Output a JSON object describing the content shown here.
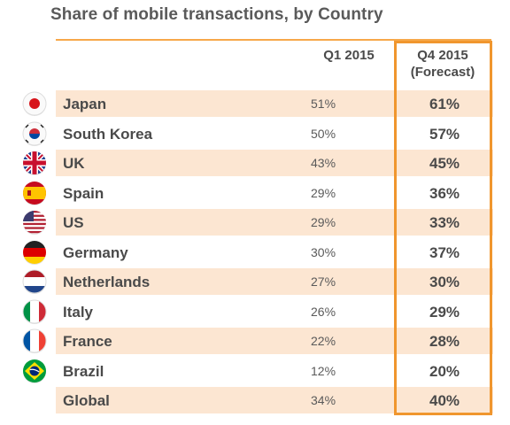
{
  "chart_data": {
    "type": "table",
    "title": "Share of mobile transactions, by Country",
    "columns": [
      "",
      "Q1 2015",
      "Q4 2015 (Forecast)"
    ],
    "header_q1": "Q1 2015",
    "header_q4_line1": "Q4 2015",
    "header_q4_line2": "(Forecast)",
    "rows": [
      {
        "country": "Japan",
        "q1": "51%",
        "q4": "61%",
        "flag": "japan-flag-icon"
      },
      {
        "country": "South Korea",
        "q1": "50%",
        "q4": "57%",
        "flag": "south-korea-flag-icon"
      },
      {
        "country": "UK",
        "q1": "43%",
        "q4": "45%",
        "flag": "uk-flag-icon"
      },
      {
        "country": "Spain",
        "q1": "29%",
        "q4": "36%",
        "flag": "spain-flag-icon"
      },
      {
        "country": "US",
        "q1": "29%",
        "q4": "33%",
        "flag": "us-flag-icon"
      },
      {
        "country": "Germany",
        "q1": "30%",
        "q4": "37%",
        "flag": "germany-flag-icon"
      },
      {
        "country": "Netherlands",
        "q1": "27%",
        "q4": "30%",
        "flag": "netherlands-flag-icon"
      },
      {
        "country": "Italy",
        "q1": "26%",
        "q4": "29%",
        "flag": "italy-flag-icon"
      },
      {
        "country": "France",
        "q1": "22%",
        "q4": "28%",
        "flag": "france-flag-icon"
      },
      {
        "country": "Brazil",
        "q1": "12%",
        "q4": "20%",
        "flag": "brazil-flag-icon"
      },
      {
        "country": "Global",
        "q1": "34%",
        "q4": "40%",
        "flag": ""
      }
    ]
  },
  "colors": {
    "row_shade": "#fce6d2",
    "highlight_border": "#f0962e",
    "top_rule": "#f7a84a"
  }
}
